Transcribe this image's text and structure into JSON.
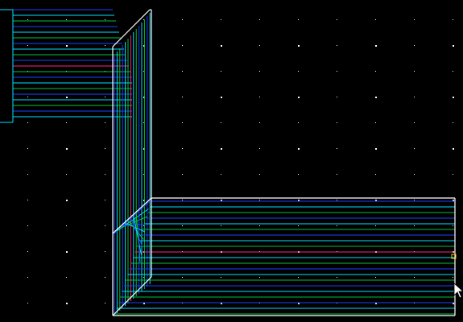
{
  "view": {
    "background": "#000000",
    "grid_dot_color": "#ffffff",
    "outline_color": "#ffffff",
    "stripe_colors": [
      "#1e40ff",
      "#00e0ff",
      "#00c040",
      "#a040ff"
    ],
    "highlight_color": "#ff2080",
    "handle_color": "#ffd000"
  },
  "cursor": {
    "icon": "arrow-pointer-icon"
  }
}
